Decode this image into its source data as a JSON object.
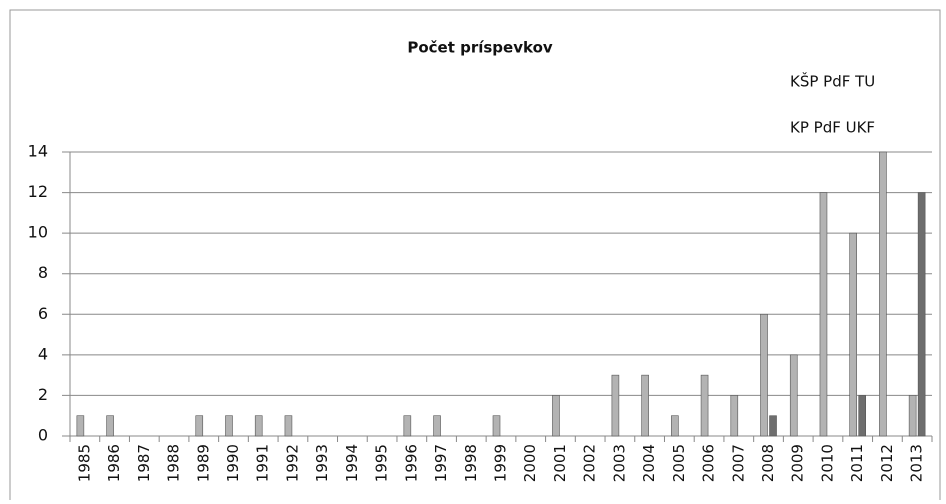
{
  "chart_data": {
    "type": "bar",
    "title": "Počet príspevkov",
    "categories": [
      "1985",
      "1986",
      "1987",
      "1988",
      "1989",
      "1990",
      "1991",
      "1992",
      "1993",
      "1994",
      "1995",
      "1996",
      "1997",
      "1998",
      "1999",
      "2000",
      "2001",
      "2002",
      "2003",
      "2004",
      "2005",
      "2006",
      "2007",
      "2008",
      "2009",
      "2010",
      "2011",
      "2012",
      "2013"
    ],
    "series": [
      {
        "name": "KŠP PdF TU",
        "color": "#b3b3b3",
        "values": [
          1,
          1,
          0,
          0,
          1,
          1,
          1,
          1,
          0,
          0,
          0,
          1,
          1,
          0,
          1,
          0,
          2,
          0,
          3,
          3,
          1,
          3,
          2,
          6,
          4,
          12,
          10,
          14,
          2
        ]
      },
      {
        "name": "KP PdF UKF",
        "color": "#6e6e6e",
        "values": [
          0,
          0,
          0,
          0,
          0,
          0,
          0,
          0,
          0,
          0,
          0,
          0,
          0,
          0,
          0,
          0,
          0,
          0,
          0,
          0,
          0,
          0,
          0,
          1,
          0,
          0,
          2,
          0,
          12
        ]
      }
    ],
    "ylim": [
      0,
      14
    ],
    "yticks": [
      0,
      2,
      4,
      6,
      8,
      10,
      12,
      14
    ],
    "grid": true
  }
}
